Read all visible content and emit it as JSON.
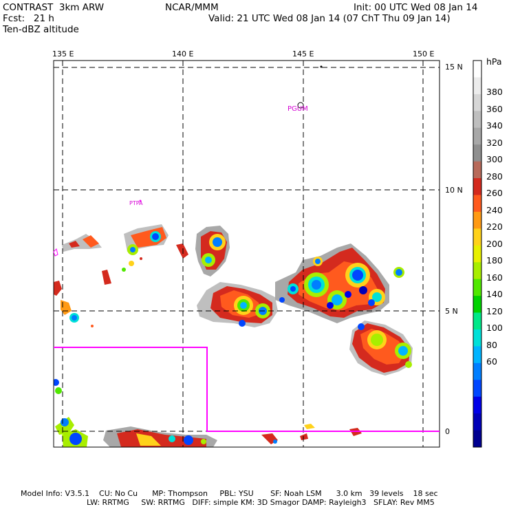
{
  "header": {
    "model": "CONTRAST  3km ARW",
    "org": "NCAR/MMM",
    "init": "Init: 00 UTC Wed 08 Jan 14",
    "fcst": "Fcst:   21 h",
    "valid": "Valid: 21 UTC Wed 08 Jan 14 (07 ChT Thu 09 Jan 14)",
    "field": "Ten-dBZ altitude"
  },
  "axes": {
    "lon_labels": [
      "135 E",
      "140 E",
      "145 E",
      "150 E"
    ],
    "lat_labels": [
      "15 N",
      "10 N",
      "5 N",
      "0"
    ]
  },
  "stations": [
    "PGUM",
    "PTPA"
  ],
  "colorbar": {
    "unit": "hPa",
    "labels": [
      "380",
      "360",
      "340",
      "320",
      "300",
      "280",
      "260",
      "240",
      "220",
      "200",
      "180",
      "160",
      "140",
      "120",
      "100",
      "80",
      "60"
    ],
    "colors": [
      "#ffffff",
      "#ececec",
      "#d6d6d6",
      "#bfbfbf",
      "#a8a8a8",
      "#8f8f8f",
      "#b86a5a",
      "#d42a1e",
      "#ff5a1e",
      "#ff9a14",
      "#ffd21a",
      "#e8f000",
      "#a8ee00",
      "#50e800",
      "#00d200",
      "#00e888",
      "#00e0d8",
      "#00b4ff",
      "#007eff",
      "#0046ff",
      "#0000e8",
      "#0000b8",
      "#000090"
    ]
  },
  "footer": {
    "line1": "Model Info: V3.5.1    CU: No Cu      MP: Thompson     PBL: YSU       SF: Noah LSM      3.0 km   39 levels    18 sec",
    "line2": "LW: RRTMG     SW: RRTMG   DIFF: simple KM: 3D Smagor DAMP: Rayleigh3   SFLAY: Rev MM5"
  }
}
